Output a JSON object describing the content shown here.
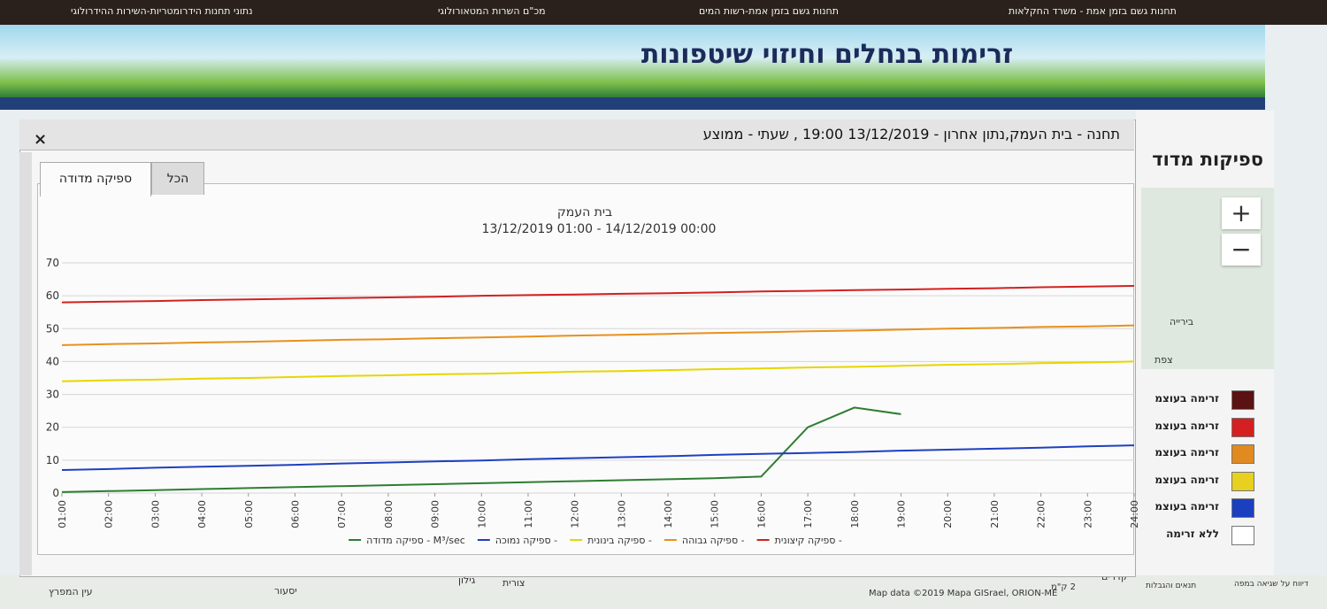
{
  "top_links": [
    "תחנות גשם בזמן אמת - משרד החקלאות",
    "תחנות גשם בזמן אמת-רשות המים",
    "מכ\"ם השרות המטאורולוגי",
    "נתוני תחנות הידרומטריות-השירות ההידרולוגי"
  ],
  "banner_title": "זרימות בנחלים וחיזוי שיטפונות",
  "side_title": "ספיקות מדוד",
  "modal": {
    "title": "תחנה - בית העמק,נתון אחרון - 13/12/2019 19:00 , שעתי - ממוצע",
    "close": "×",
    "tabs": [
      "ספיקה מדודה",
      "הכל"
    ]
  },
  "chart_data": {
    "type": "line",
    "title": "בית העמק",
    "subtitle": "13/12/2019 01:00  -  14/12/2019 00:00",
    "categories": [
      "01:00",
      "02:00",
      "03:00",
      "04:00",
      "05:00",
      "06:00",
      "07:00",
      "08:00",
      "09:00",
      "10:00",
      "11:00",
      "12:00",
      "13:00",
      "14:00",
      "15:00",
      "16:00",
      "17:00",
      "18:00",
      "19:00",
      "20:00",
      "21:00",
      "22:00",
      "23:00",
      "24:00"
    ],
    "series": [
      {
        "name": "ספיקה מדודה - M³/sec",
        "color": "#2e7d32",
        "values": [
          0.3,
          0.6,
          0.9,
          1.2,
          1.5,
          1.8,
          2.1,
          2.4,
          2.7,
          3.0,
          3.3,
          3.6,
          3.9,
          4.2,
          4.5,
          5.0,
          20,
          26,
          24,
          null,
          null,
          null,
          null,
          null
        ]
      },
      {
        "name": "ספיקה נמוכה -",
        "color": "#1f3fbf",
        "values": [
          7.0,
          7.3,
          7.7,
          8.0,
          8.3,
          8.6,
          9.0,
          9.3,
          9.6,
          9.9,
          10.3,
          10.6,
          10.9,
          11.2,
          11.6,
          11.9,
          12.2,
          12.5,
          12.9,
          13.2,
          13.5,
          13.8,
          14.2,
          14.5
        ]
      },
      {
        "name": "ספיקה בינונית -",
        "color": "#e6d600",
        "values": [
          34.0,
          34.3,
          34.5,
          34.8,
          35.0,
          35.3,
          35.6,
          35.8,
          36.1,
          36.3,
          36.6,
          36.9,
          37.1,
          37.4,
          37.7,
          37.9,
          38.2,
          38.4,
          38.7,
          39.0,
          39.2,
          39.5,
          39.7,
          40.0
        ]
      },
      {
        "name": "ספיקה גבוהה -",
        "color": "#e8901c",
        "values": [
          45.0,
          45.3,
          45.5,
          45.8,
          46.0,
          46.3,
          46.6,
          46.8,
          47.1,
          47.3,
          47.6,
          47.9,
          48.1,
          48.4,
          48.7,
          48.9,
          49.2,
          49.4,
          49.7,
          50.0,
          50.2,
          50.5,
          50.7,
          51.0
        ]
      },
      {
        "name": "ספיקה קיצונית -",
        "color": "#d32020",
        "values": [
          58.0,
          58.2,
          58.4,
          58.7,
          58.9,
          59.1,
          59.3,
          59.5,
          59.7,
          60.0,
          60.2,
          60.4,
          60.6,
          60.8,
          61.0,
          61.3,
          61.5,
          61.7,
          61.9,
          62.1,
          62.3,
          62.6,
          62.8,
          63.0
        ]
      }
    ],
    "ylim": [
      0,
      70
    ],
    "yticks": [
      0,
      10,
      20,
      30,
      40,
      50,
      60,
      70
    ],
    "grid": true
  },
  "flow_legend": [
    {
      "label": "זרימה בעוצמ",
      "color": "#5a1212"
    },
    {
      "label": "זרימה בעוצמ",
      "color": "#d42020"
    },
    {
      "label": "זרימה בעוצמ",
      "color": "#e08a20"
    },
    {
      "label": "זרימה בעוצמ",
      "color": "#e8d020"
    },
    {
      "label": "זרימה בעוצמ",
      "color": "#1a40c0"
    },
    {
      "label": "ללא זרימה",
      "color": "#ffffff"
    }
  ],
  "map": {
    "zoom_in": "+",
    "zoom_out": "−",
    "places": [
      "עין המפרץ",
      "יסעור",
      "גילון",
      "צורית",
      "קדרים",
      "צפת",
      "בירייה"
    ],
    "attribution": "Map data ©2019 Mapa GISrael, ORION-ME",
    "scale": "2 ק\"מ",
    "terms": "תנאים והגבלות",
    "report": "דיווח על שגיאה במפה"
  }
}
